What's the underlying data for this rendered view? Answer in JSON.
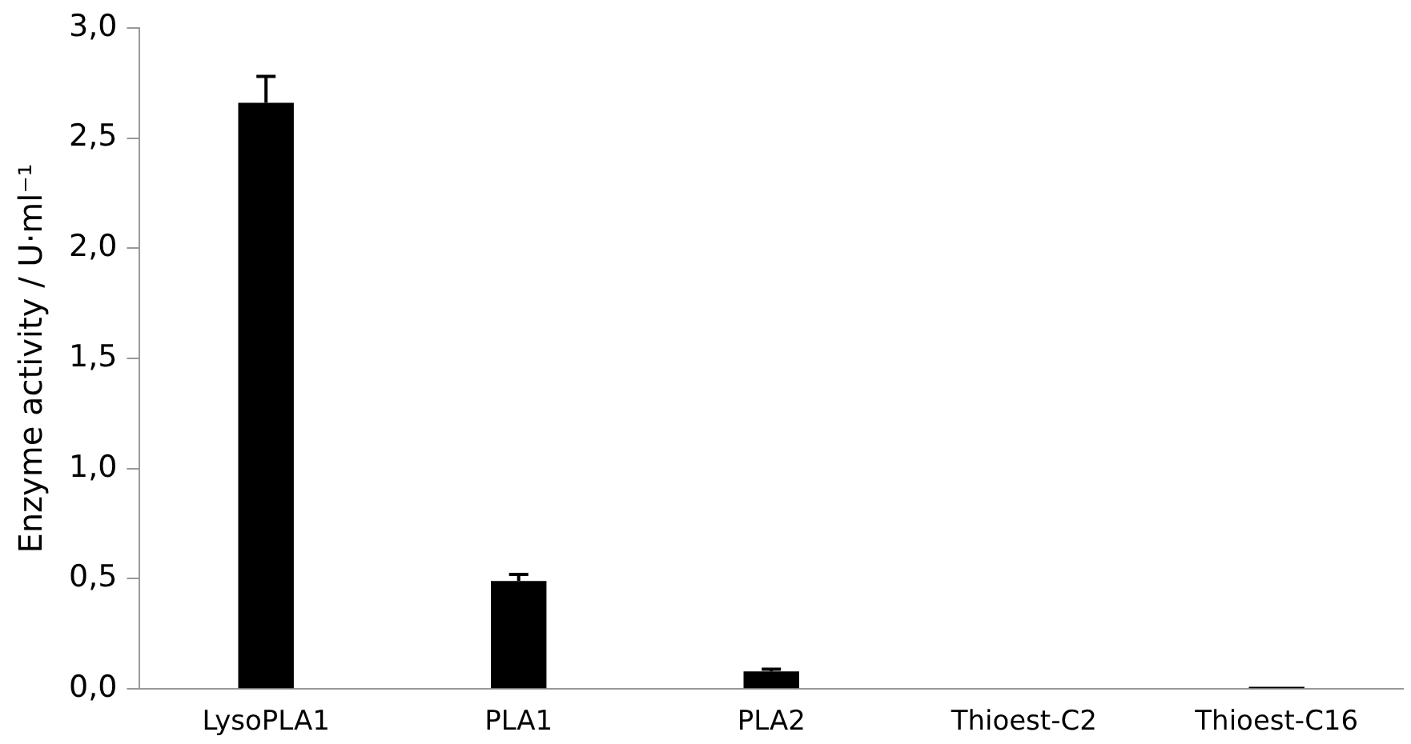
{
  "chart_data": {
    "type": "bar",
    "ylabel": "Enzyme activity / U·ml⁻¹",
    "categories": [
      "LysoPLA1",
      "PLA1",
      "PLA2",
      "Thioest-C2",
      "Thioest-C16"
    ],
    "values": [
      2.66,
      0.49,
      0.08,
      0,
      0.01
    ],
    "errors": [
      0.12,
      0.03,
      0.01,
      null,
      null
    ],
    "color": "#000000",
    "ylim": [
      0,
      3
    ],
    "yticks": [
      {
        "value": 0,
        "label": "0,0"
      },
      {
        "value": 0.5,
        "label": "0,5"
      },
      {
        "value": 1,
        "label": "1,0"
      },
      {
        "value": 1.5,
        "label": "1,5"
      },
      {
        "value": 2,
        "label": "2,0"
      },
      {
        "value": 2.5,
        "label": "2,5"
      },
      {
        "value": 3,
        "label": "3,0"
      }
    ],
    "grid": false,
    "legend": false
  }
}
